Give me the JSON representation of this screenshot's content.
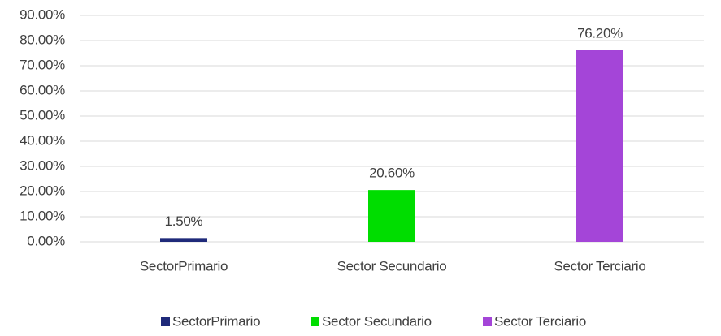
{
  "chart_data": {
    "type": "bar",
    "categories": [
      "SectorPrimario",
      "Sector Secundario",
      "Sector Terciario"
    ],
    "values": [
      1.5,
      20.6,
      76.2
    ],
    "value_labels": [
      "1.50%",
      "20.60%",
      "76.20%"
    ],
    "colors": [
      "#1f2a7a",
      "#00dd00",
      "#a445d8"
    ],
    "ylim": [
      0,
      90
    ],
    "yticks": [
      {
        "value": 0,
        "label": "0.00%"
      },
      {
        "value": 10,
        "label": "10.00%"
      },
      {
        "value": 20,
        "label": "20.00%"
      },
      {
        "value": 30,
        "label": "30.00%"
      },
      {
        "value": 40,
        "label": "40.00%"
      },
      {
        "value": 50,
        "label": "50.00%"
      },
      {
        "value": 60,
        "label": "60.00%"
      },
      {
        "value": 70,
        "label": "70.00%"
      },
      {
        "value": 80,
        "label": "80.00%"
      },
      {
        "value": 90,
        "label": "90.00%"
      }
    ],
    "grid": true,
    "legend": "bottom"
  }
}
